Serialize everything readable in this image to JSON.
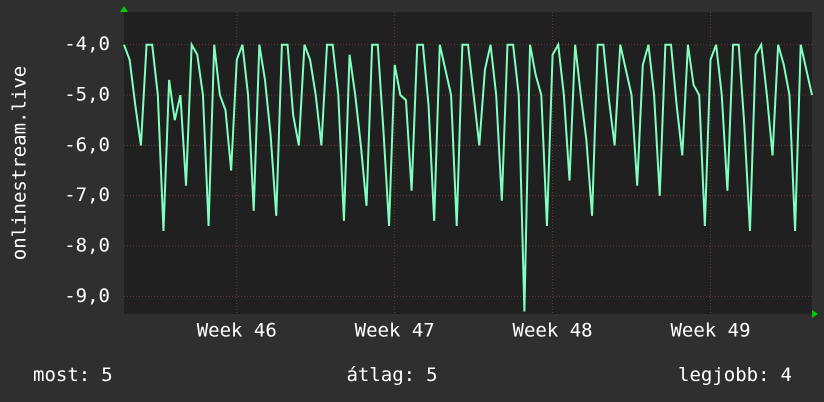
{
  "chart_data": {
    "type": "line",
    "y_label": "onlinestream.live",
    "series": [
      {
        "name": "onlinestream.live",
        "color": "#80ffbf",
        "values": [
          -4,
          -4.3,
          -5.2,
          -6,
          -4,
          -4,
          -5,
          -7.7,
          -4.7,
          -5.5,
          -5,
          -6.8,
          -4,
          -4.2,
          -5,
          -7.6,
          -4,
          -5,
          -5.3,
          -6.5,
          -4.3,
          -4,
          -5,
          -7.3,
          -4,
          -4.7,
          -5.8,
          -7.4,
          -4,
          -4,
          -5.4,
          -6,
          -4,
          -4.3,
          -5,
          -6,
          -4,
          -4,
          -5,
          -7.5,
          -4.2,
          -5,
          -6,
          -7.2,
          -4,
          -4,
          -5.7,
          -7.6,
          -4.4,
          -5,
          -5.1,
          -6.9,
          -4,
          -4,
          -5.2,
          -7.5,
          -4,
          -4.5,
          -5,
          -7.6,
          -4,
          -4,
          -5,
          -6,
          -4.5,
          -4,
          -5,
          -7.1,
          -4,
          -4,
          -5,
          -9.3,
          -4,
          -4.6,
          -5,
          -7.6,
          -4.2,
          -4,
          -5,
          -6.7,
          -4,
          -5,
          -5.9,
          -7.4,
          -4,
          -4,
          -5.1,
          -6,
          -4,
          -4.5,
          -5,
          -6.8,
          -4.4,
          -4,
          -5,
          -7,
          -4,
          -4,
          -5.2,
          -6.2,
          -4,
          -4.8,
          -5,
          -7.6,
          -4.3,
          -4,
          -5,
          -6.9,
          -4,
          -4,
          -5.6,
          -7.7,
          -4.2,
          -4,
          -5,
          -6.2,
          -4,
          -4.4,
          -5,
          -7.7,
          -4,
          -4.5,
          -5
        ]
      }
    ],
    "xlim": [
      0,
      122
    ],
    "xticks": [
      {
        "value": 20,
        "label": "Week 46"
      },
      {
        "value": 48,
        "label": "Week 47"
      },
      {
        "value": 76,
        "label": "Week 48"
      },
      {
        "value": 104,
        "label": "Week 49"
      }
    ],
    "ylim": [
      -9.35,
      -3.35
    ],
    "yticks": [
      {
        "value": -9,
        "label": "-9,0"
      },
      {
        "value": -8,
        "label": "-8,0"
      },
      {
        "value": -7,
        "label": "-7,0"
      },
      {
        "value": -6,
        "label": "-6,0"
      },
      {
        "value": -5,
        "label": "-5,0"
      },
      {
        "value": -4,
        "label": "-4,0"
      }
    ],
    "grid": true,
    "footer": [
      {
        "label": "most:",
        "value": 5
      },
      {
        "label": "átlag:",
        "value": 5
      },
      {
        "label": "legjobb:",
        "value": 4
      }
    ]
  }
}
